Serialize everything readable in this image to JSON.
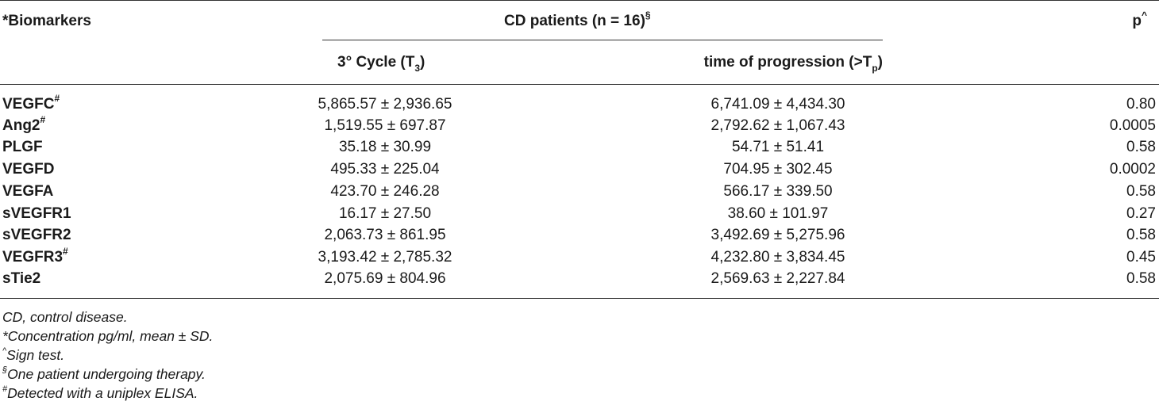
{
  "header": {
    "biomarkers": "*Biomarkers",
    "group": "CD patients (n = 16)",
    "group_sup": "§",
    "p": "p",
    "p_sup": "^",
    "col1_main": "3° Cycle (T",
    "col1_sub": "3",
    "col1_end": ")",
    "col2_main": "time of progression (>T",
    "col2_sub": "p",
    "col2_end": ")"
  },
  "rows": [
    {
      "name": "VEGFC",
      "sup": "#",
      "t3": "5,865.57 ± 2,936.65",
      "tp": "6,741.09 ± 4,434.30",
      "p": "0.80"
    },
    {
      "name": "Ang2",
      "sup": "#",
      "t3": "1,519.55 ± 697.87",
      "tp": "2,792.62 ± 1,067.43",
      "p": "0.0005"
    },
    {
      "name": "PLGF",
      "sup": "",
      "t3": "35.18 ± 30.99",
      "tp": "54.71 ± 51.41",
      "p": "0.58"
    },
    {
      "name": "VEGFD",
      "sup": "",
      "t3": "495.33 ± 225.04",
      "tp": "704.95 ± 302.45",
      "p": "0.0002"
    },
    {
      "name": "VEGFA",
      "sup": "",
      "t3": "423.70 ± 246.28",
      "tp": "566.17 ± 339.50",
      "p": "0.58"
    },
    {
      "name": "sVEGFR1",
      "sup": "",
      "t3": "16.17 ± 27.50",
      "tp": "38.60 ± 101.97",
      "p": "0.27"
    },
    {
      "name": "sVEGFR2",
      "sup": "",
      "t3": "2,063.73 ± 861.95",
      "tp": "3,492.69 ± 5,275.96",
      "p": "0.58"
    },
    {
      "name": "VEGFR3",
      "sup": "#",
      "t3": "3,193.42 ± 2,785.32",
      "tp": "4,232.80 ± 3,834.45",
      "p": "0.45"
    },
    {
      "name": "sTie2",
      "sup": "",
      "t3": "2,075.69 ± 804.96",
      "tp": "2,569.63 ± 2,227.84",
      "p": "0.58"
    }
  ],
  "footnotes": [
    {
      "sup": "",
      "text": "CD, control disease."
    },
    {
      "sup": "",
      "text": "*Concentration pg/ml, mean ± SD."
    },
    {
      "sup": "^",
      "text": "Sign test."
    },
    {
      "sup": "§",
      "text": "One patient undergoing therapy."
    },
    {
      "sup": "#",
      "text": "Detected with a uniplex ELISA."
    }
  ]
}
